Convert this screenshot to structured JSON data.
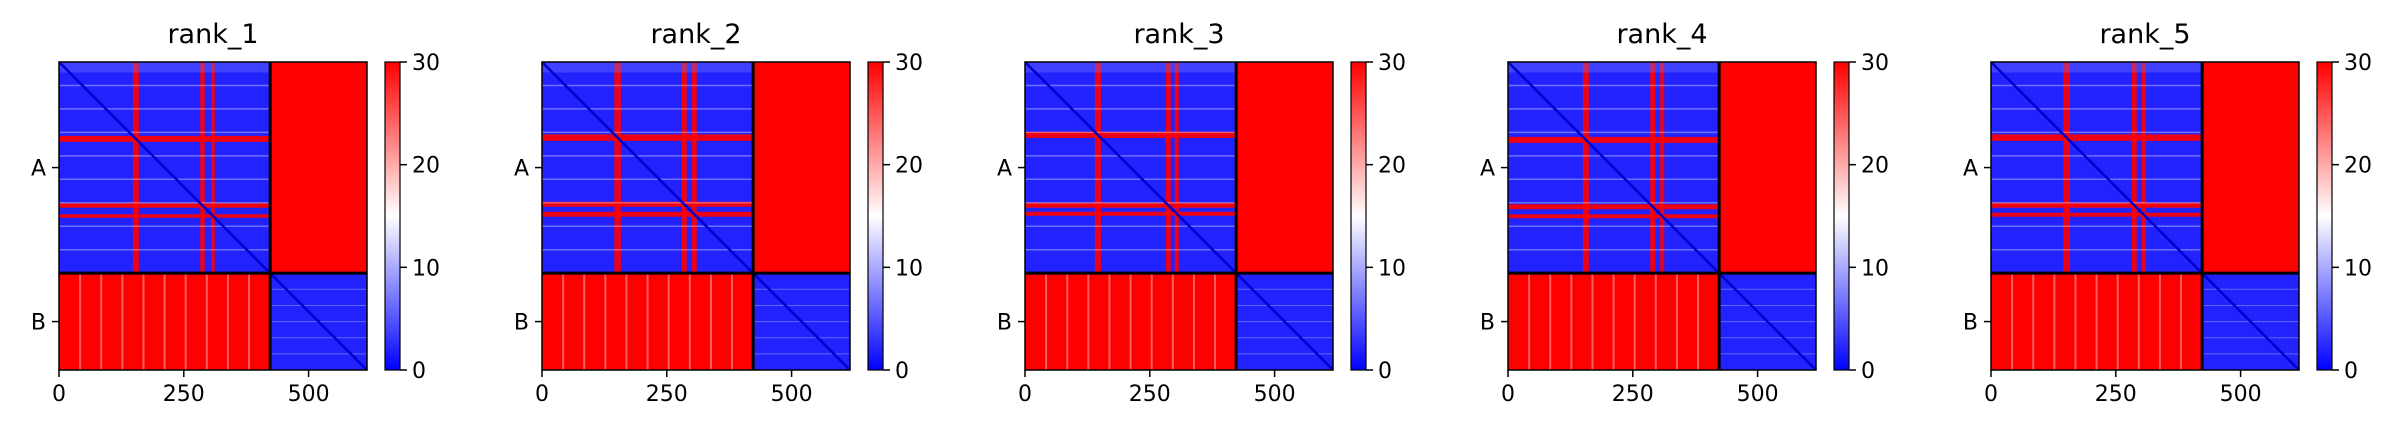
{
  "colorbar": {
    "ticks": [
      0,
      10,
      20,
      30
    ],
    "vmin": 0,
    "vmax": 30,
    "colormap": "bwr",
    "colors": {
      "low": "#0000ff",
      "mid": "#ffffff",
      "high": "#ff0000"
    }
  },
  "chart_data": [
    {
      "type": "heatmap",
      "title": "rank_1",
      "xlabel": "",
      "ylabel": "",
      "chains": [
        {
          "name": "A",
          "start": 0,
          "end": 423
        },
        {
          "name": "B",
          "start": 423,
          "end": 617
        }
      ],
      "xticks": [
        0,
        250,
        500
      ],
      "xlim": [
        0,
        617
      ],
      "ylim": [
        617,
        0
      ],
      "color_range": [
        0,
        30
      ],
      "bands": [
        [
          148,
          160
        ],
        [
          283,
          292
        ],
        [
          305,
          312
        ]
      ]
    },
    {
      "type": "heatmap",
      "title": "rank_2",
      "xlabel": "",
      "ylabel": "",
      "chains": [
        {
          "name": "A",
          "start": 0,
          "end": 423
        },
        {
          "name": "B",
          "start": 423,
          "end": 617
        }
      ],
      "xticks": [
        0,
        250,
        500
      ],
      "xlim": [
        0,
        617
      ],
      "ylim": [
        617,
        0
      ],
      "color_range": [
        0,
        30
      ],
      "bands": [
        [
          145,
          158
        ],
        [
          280,
          290
        ],
        [
          300,
          310
        ]
      ]
    },
    {
      "type": "heatmap",
      "title": "rank_3",
      "xlabel": "",
      "ylabel": "",
      "chains": [
        {
          "name": "A",
          "start": 0,
          "end": 423
        },
        {
          "name": "B",
          "start": 423,
          "end": 617
        }
      ],
      "xticks": [
        0,
        250,
        500
      ],
      "xlim": [
        0,
        617
      ],
      "ylim": [
        617,
        0
      ],
      "color_range": [
        0,
        30
      ],
      "bands": [
        [
          140,
          152
        ],
        [
          282,
          292
        ],
        [
          300,
          308
        ]
      ]
    },
    {
      "type": "heatmap",
      "title": "rank_4",
      "xlabel": "",
      "ylabel": "",
      "chains": [
        {
          "name": "A",
          "start": 0,
          "end": 423
        },
        {
          "name": "B",
          "start": 423,
          "end": 617
        }
      ],
      "xticks": [
        0,
        250,
        500
      ],
      "xlim": [
        0,
        617
      ],
      "ylim": [
        617,
        0
      ],
      "color_range": [
        0,
        30
      ],
      "bands": [
        [
          150,
          162
        ],
        [
          285,
          295
        ],
        [
          305,
          313
        ]
      ]
    },
    {
      "type": "heatmap",
      "title": "rank_5",
      "xlabel": "",
      "ylabel": "",
      "chains": [
        {
          "name": "A",
          "start": 0,
          "end": 423
        },
        {
          "name": "B",
          "start": 423,
          "end": 617
        }
      ],
      "xticks": [
        0,
        250,
        500
      ],
      "xlim": [
        0,
        617
      ],
      "ylim": [
        617,
        0
      ],
      "color_range": [
        0,
        30
      ],
      "bands": [
        [
          145,
          158
        ],
        [
          282,
          292
        ],
        [
          302,
          310
        ]
      ]
    }
  ]
}
